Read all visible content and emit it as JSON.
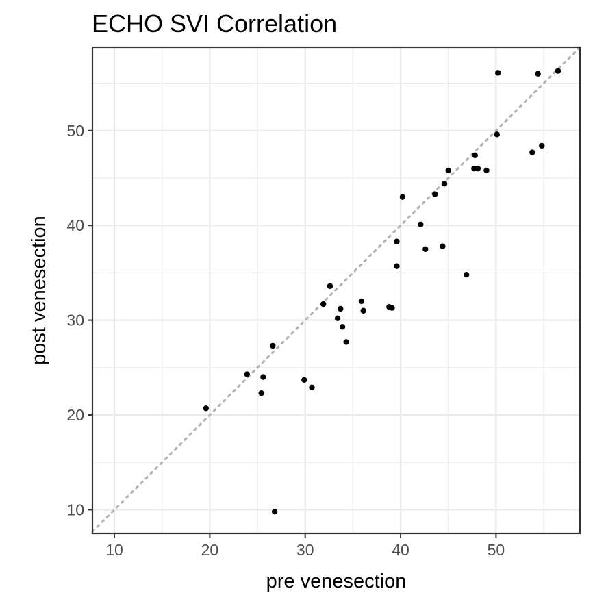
{
  "chart_data": {
    "type": "scatter",
    "title": "ECHO SVI   Correlation",
    "xlabel": "pre venesection",
    "ylabel": "post venesection",
    "xlim": [
      7.7,
      58.8
    ],
    "ylim": [
      7.5,
      58.8
    ],
    "xticks": [
      10,
      20,
      30,
      40,
      50
    ],
    "yticks": [
      10,
      20,
      30,
      40,
      50
    ],
    "xtick_labels": [
      "10",
      "20",
      "30",
      "40",
      "50"
    ],
    "ytick_labels": [
      "10",
      "20",
      "30",
      "40",
      "50"
    ],
    "grid": true,
    "reference_line": {
      "style": "dotted",
      "color": "#b3b3b3",
      "from": [
        7.7,
        7.7
      ],
      "to": [
        58.8,
        58.8
      ]
    },
    "point_color": "#000000",
    "points": [
      [
        19.6,
        20.7
      ],
      [
        23.9,
        24.3
      ],
      [
        25.6,
        24.0
      ],
      [
        25.4,
        22.3
      ],
      [
        26.6,
        27.3
      ],
      [
        26.8,
        9.8
      ],
      [
        29.9,
        23.7
      ],
      [
        30.7,
        22.9
      ],
      [
        31.9,
        31.7
      ],
      [
        32.6,
        33.6
      ],
      [
        33.4,
        30.2
      ],
      [
        33.7,
        31.2
      ],
      [
        33.9,
        29.3
      ],
      [
        34.3,
        27.7
      ],
      [
        35.9,
        32.0
      ],
      [
        36.1,
        31.0
      ],
      [
        38.8,
        31.4
      ],
      [
        39.1,
        31.3
      ],
      [
        39.6,
        38.3
      ],
      [
        39.6,
        35.7
      ],
      [
        40.2,
        43.0
      ],
      [
        42.1,
        40.1
      ],
      [
        42.6,
        37.5
      ],
      [
        43.6,
        43.3
      ],
      [
        44.4,
        37.8
      ],
      [
        44.6,
        44.4
      ],
      [
        45.0,
        45.8
      ],
      [
        46.9,
        34.8
      ],
      [
        47.7,
        46.0
      ],
      [
        47.8,
        47.4
      ],
      [
        48.1,
        46.0
      ],
      [
        49.0,
        45.8
      ],
      [
        50.1,
        49.6
      ],
      [
        50.2,
        56.1
      ],
      [
        53.8,
        47.7
      ],
      [
        54.4,
        56.0
      ],
      [
        54.8,
        48.4
      ],
      [
        56.5,
        56.3
      ]
    ]
  }
}
